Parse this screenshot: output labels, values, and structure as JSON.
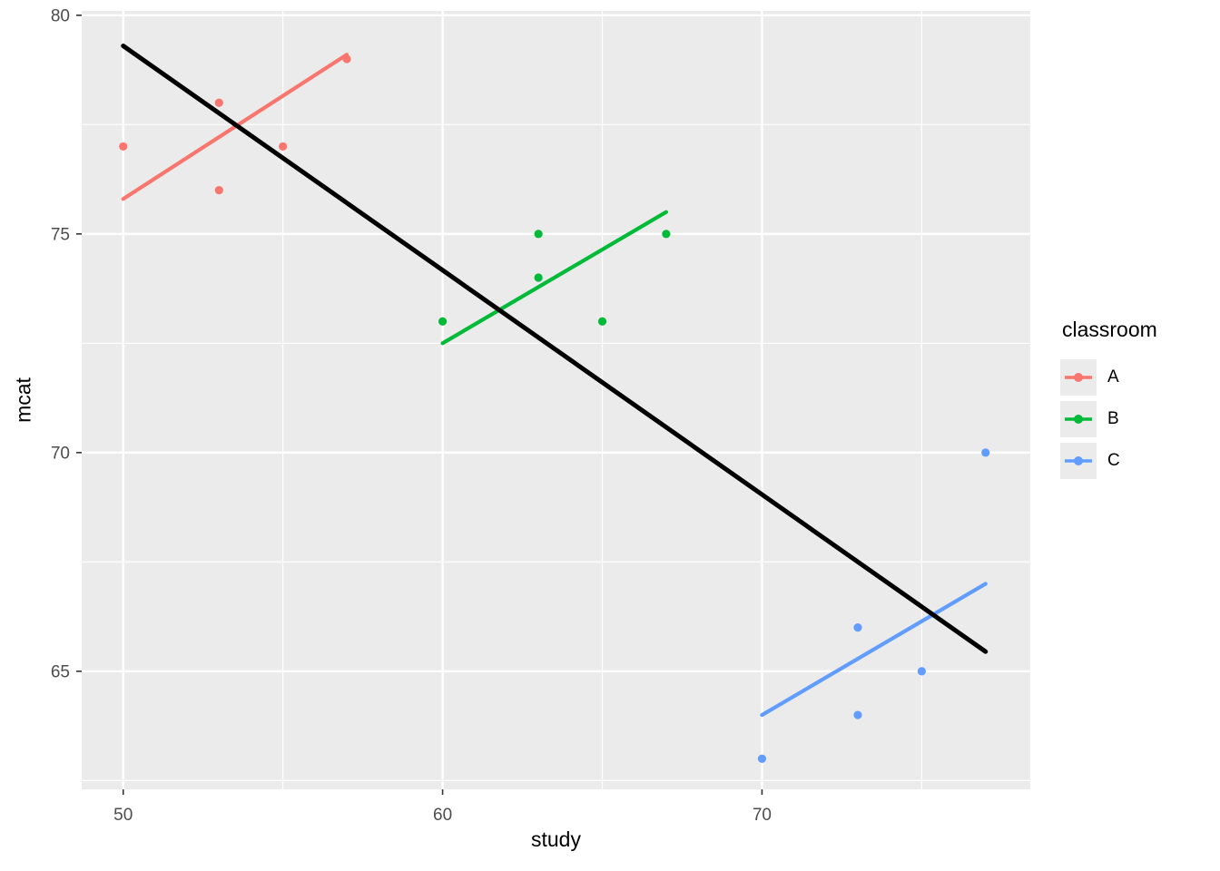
{
  "chart_data": {
    "type": "scatter",
    "title": "",
    "xlabel": "study",
    "ylabel": "mcat",
    "xlim": [
      48.7,
      78.4
    ],
    "ylim": [
      62.3,
      80.1
    ],
    "x_ticks": [
      50,
      60,
      70
    ],
    "y_ticks": [
      65,
      70,
      75,
      80
    ],
    "x_minor_ticks": [
      55,
      65,
      75
    ],
    "y_minor_ticks": [
      62.5,
      67.5,
      72.5,
      77.5
    ],
    "grid": true,
    "panel_bg": "#EBEBEB",
    "grid_color": "#FFFFFF",
    "tick_color": "#333333",
    "tick_label_color": "#4D4D4D",
    "legend": {
      "title": "classroom",
      "position": "right",
      "entries": [
        {
          "label": "A",
          "color": "#F8766D"
        },
        {
          "label": "B",
          "color": "#00BA38"
        },
        {
          "label": "C",
          "color": "#619CFF"
        }
      ]
    },
    "series": [
      {
        "name": "A",
        "color": "#F8766D",
        "points": [
          [
            50,
            77
          ],
          [
            53,
            78
          ],
          [
            53,
            76
          ],
          [
            55,
            77
          ],
          [
            57,
            79
          ]
        ],
        "fit_line": {
          "from": [
            50,
            75.8
          ],
          "to": [
            57,
            79.1
          ]
        }
      },
      {
        "name": "B",
        "color": "#00BA38",
        "points": [
          [
            60,
            73
          ],
          [
            63,
            75
          ],
          [
            63,
            74
          ],
          [
            65,
            73
          ],
          [
            67,
            75
          ]
        ],
        "fit_line": {
          "from": [
            60,
            72.5
          ],
          "to": [
            67,
            75.5
          ]
        }
      },
      {
        "name": "C",
        "color": "#619CFF",
        "points": [
          [
            70,
            63
          ],
          [
            73,
            66
          ],
          [
            73,
            64
          ],
          [
            75,
            65
          ],
          [
            77,
            70
          ]
        ],
        "fit_line": {
          "from": [
            70,
            64
          ],
          "to": [
            77,
            67
          ]
        }
      }
    ],
    "overall_line": {
      "color": "#000000",
      "from": [
        50,
        79.3
      ],
      "to": [
        77,
        65.45
      ]
    }
  }
}
